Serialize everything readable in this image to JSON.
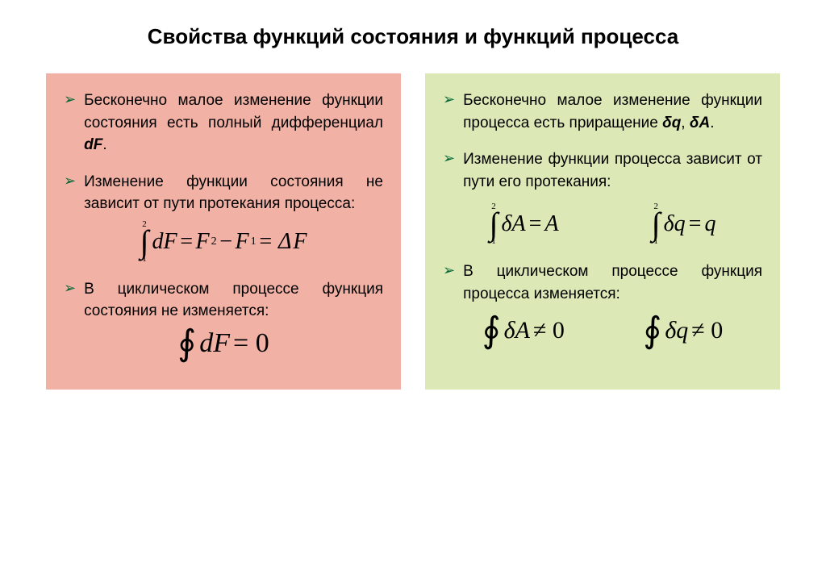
{
  "title": "Свойства функций состояния и функций процесса",
  "colors": {
    "left_bg": "#f1b1a4",
    "right_bg": "#dce8b6",
    "bullet_arrow": "#006633",
    "text": "#000000",
    "page_bg": "#ffffff"
  },
  "typography": {
    "title_fontsize": 26,
    "body_fontsize": 19,
    "formula_fontsize": 28,
    "formula_font": "Times New Roman"
  },
  "left": {
    "b1_pre": "Бесконечно малое изменение функции состояния есть полный дифференциал ",
    "b1_em": "dF",
    "b1_post": ".",
    "b2": "Изменение функции состояния не зависит от пути протекания процесса:",
    "f2": {
      "upper": "2",
      "lower": "1",
      "body_integrand": "dF",
      "eq": " = ",
      "rhs_F2": "F",
      "rhs_sub2": "2",
      "minus": " − ",
      "rhs_F1": "F",
      "rhs_sub1": "1",
      "eq2": " = Δ",
      "rhs_dF": "F"
    },
    "b3": "В циклическом процессе функция состояния не изменяется:",
    "f3": {
      "integrand": "dF",
      "eq": " = 0"
    }
  },
  "right": {
    "b1_pre": "Бесконечно малое изменение функции процесса есть приращение  ",
    "b1_em1": "δq",
    "b1_sep": ", ",
    "b1_em2": "δA",
    "b1_post": ".",
    "b2": "Изменение функции процесса зависит от пути его протекания:",
    "f2a": {
      "upper": "2",
      "lower": "1",
      "integrand": "δA",
      "eq": " = ",
      "rhs": "A"
    },
    "f2b": {
      "upper": "2",
      "lower": "1",
      "integrand": "δq",
      "eq": " = ",
      "rhs": "q"
    },
    "b3": "В циклическом процессе функция процесса  изменяется:",
    "f3a": {
      "integrand": "δA",
      "neq": " ≠ 0"
    },
    "f3b": {
      "integrand": "δq",
      "neq": " ≠ 0"
    }
  }
}
